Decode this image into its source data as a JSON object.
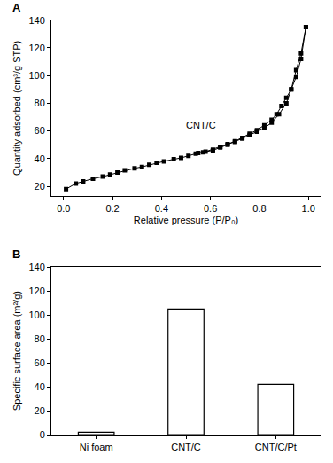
{
  "chart_data": [
    {
      "type": "scatter",
      "title": "A",
      "x_label": "Relative pressure (P/P₀)",
      "y_label": "Quantity adsorbed (cm³/g STP)",
      "series": [
        {
          "color": "#000000",
          "marker": "square",
          "line_style": "solid",
          "x": [
            0.01,
            0.05,
            0.08,
            0.12,
            0.16,
            0.19,
            0.22,
            0.25,
            0.29,
            0.32,
            0.35,
            0.38,
            0.41,
            0.45,
            0.48,
            0.51,
            0.54,
            0.57,
            0.61,
            0.64,
            0.67,
            0.7,
            0.73,
            0.76,
            0.79,
            0.82,
            0.85,
            0.88,
            0.91,
            0.93,
            0.95,
            0.97,
            0.99
          ],
          "values": [
            18,
            22,
            23.5,
            25.5,
            27,
            28.5,
            30,
            31.5,
            33,
            34,
            35.5,
            37,
            38,
            39.5,
            40.5,
            42,
            43.5,
            44.5,
            46,
            48,
            50,
            52,
            54.5,
            57,
            59.5,
            62,
            66,
            72,
            80,
            90,
            104,
            116,
            135
          ]
        },
        {
          "color": "#000000",
          "marker": "square",
          "line_style": "solid",
          "x": [
            0.99,
            0.97,
            0.95,
            0.93,
            0.91,
            0.89,
            0.87,
            0.85,
            0.82,
            0.79,
            0.76,
            0.73,
            0.7,
            0.67,
            0.64,
            0.61,
            0.58,
            0.55
          ],
          "values": [
            135,
            112,
            99,
            90,
            84,
            78,
            72,
            68,
            64,
            60.5,
            58,
            55,
            52.5,
            50.5,
            48.5,
            46.5,
            45,
            44
          ]
        }
      ],
      "annotations": [
        {
          "text": "CNT/C",
          "x": 0.56,
          "y": 64
        }
      ],
      "xlim": [
        -0.05,
        1.05
      ],
      "xticks": [
        {
          "value": 0,
          "label": "0.0"
        },
        {
          "value": 0.2,
          "label": "0.2"
        },
        {
          "value": 0.4,
          "label": "0.4"
        },
        {
          "value": 0.6,
          "label": "0.6"
        },
        {
          "value": 0.8,
          "label": "0.8"
        },
        {
          "value": 1,
          "label": "1.0"
        }
      ],
      "ylim": [
        13,
        140
      ],
      "yticks": [
        20,
        40,
        60,
        80,
        100,
        120,
        140
      ],
      "grid": false
    },
    {
      "type": "bar",
      "title": "B",
      "y_label": "Specific surface area (m²/g)",
      "categories": [
        "Ni foam",
        "CNT/C",
        "CNT/C/Pt"
      ],
      "values": [
        2,
        105,
        42
      ],
      "color": "#ffffff",
      "ylim": [
        0,
        140
      ],
      "yticks": [
        0,
        20,
        40,
        60,
        80,
        100,
        120,
        140
      ],
      "grid": false
    }
  ]
}
